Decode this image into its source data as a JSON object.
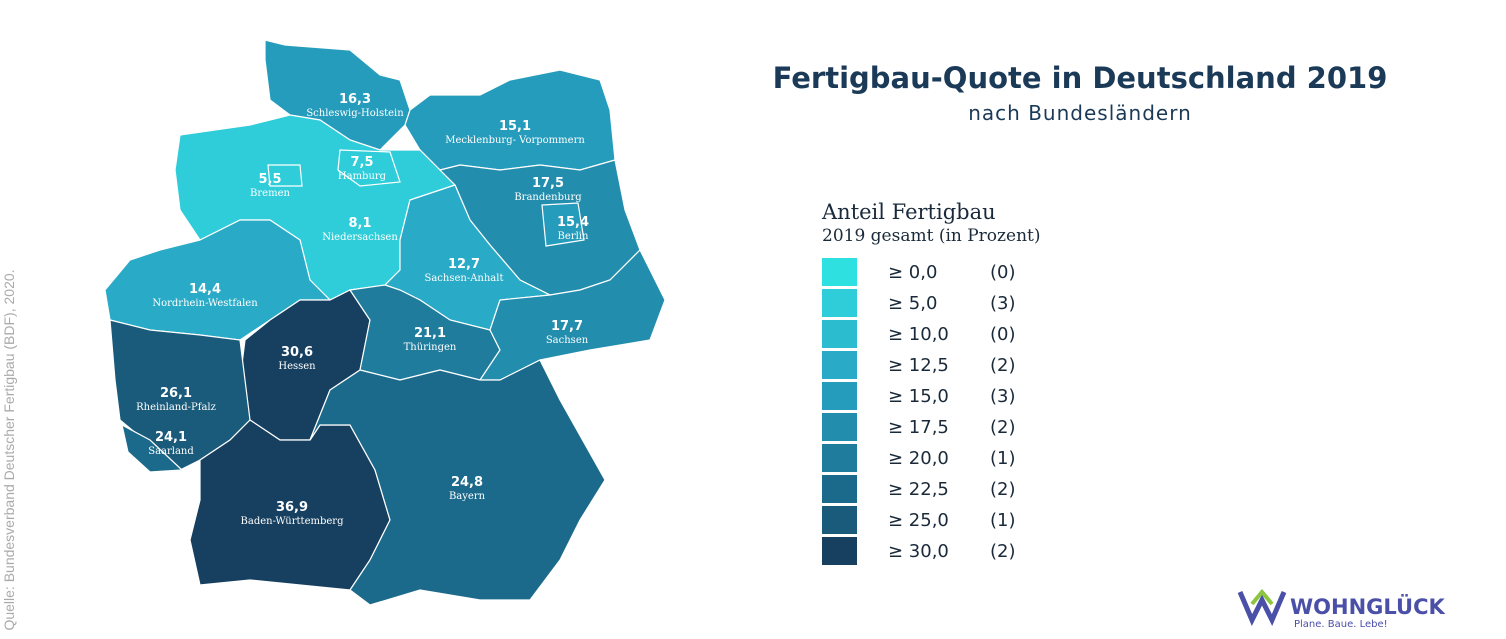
{
  "title": "Fertigbau-Quote in Deutschland 2019",
  "subtitle": "nach Bundesländern",
  "source": "Quelle: Bundesverband Deutscher Fertigbau (BDF), 2020.",
  "legend": {
    "title": "Anteil Fertigbau",
    "subtitle": "2019 gesamt (in Prozent)",
    "items": [
      {
        "threshold": "≥ 0,0",
        "count": "(0)",
        "color": "#2ee0e0"
      },
      {
        "threshold": "≥ 5,0",
        "count": "(3)",
        "color": "#2fcdd9"
      },
      {
        "threshold": "≥ 10,0",
        "count": "(0)",
        "color": "#2bbcd0"
      },
      {
        "threshold": "≥ 12,5",
        "count": "(2)",
        "color": "#29aac6"
      },
      {
        "threshold": "≥ 15,0",
        "count": "(3)",
        "color": "#259cbc"
      },
      {
        "threshold": "≥ 17,5",
        "count": "(2)",
        "color": "#228dad"
      },
      {
        "threshold": "≥ 20,0",
        "count": "(1)",
        "color": "#1f7c9c"
      },
      {
        "threshold": "≥ 22,5",
        "count": "(2)",
        "color": "#1c6a8b"
      },
      {
        "threshold": "≥ 25,0",
        "count": "(1)",
        "color": "#1a5a7a"
      },
      {
        "threshold": "≥ 30,0",
        "count": "(2)",
        "color": "#174060"
      }
    ]
  },
  "regions": [
    {
      "name": "Schleswig-Holstein",
      "value": "16,3",
      "color": "#259cbc"
    },
    {
      "name": "Mecklenburg- Vorpommern",
      "value": "15,1",
      "color": "#259cbc"
    },
    {
      "name": "Niedersachsen",
      "value": "8,1",
      "color": "#2fcdd9"
    },
    {
      "name": "Hamburg",
      "value": "7,5",
      "color": "#2fcdd9"
    },
    {
      "name": "Bremen",
      "value": "5,5",
      "color": "#2fcdd9"
    },
    {
      "name": "Brandenburg",
      "value": "17,5",
      "color": "#228dad"
    },
    {
      "name": "Berlin",
      "value": "15,4",
      "color": "#259cbc"
    },
    {
      "name": "Sachsen-Anhalt",
      "value": "12,7",
      "color": "#29aac6"
    },
    {
      "name": "Nordrhein-Westfalen",
      "value": "14,4",
      "color": "#29aac6"
    },
    {
      "name": "Hessen",
      "value": "30,6",
      "color": "#174060"
    },
    {
      "name": "Thüringen",
      "value": "21,1",
      "color": "#1f7c9c"
    },
    {
      "name": "Sachsen",
      "value": "17,7",
      "color": "#228dad"
    },
    {
      "name": "Rheinland-Pfalz",
      "value": "26,1",
      "color": "#1a5a7a"
    },
    {
      "name": "Saarland",
      "value": "24,1",
      "color": "#1c6a8b"
    },
    {
      "name": "Baden-Württemberg",
      "value": "36,9",
      "color": "#174060"
    },
    {
      "name": "Bayern",
      "value": "24,8",
      "color": "#1c6a8b"
    }
  ],
  "logo": {
    "name": "WOHNGLÜCK",
    "tagline": "Plane. Baue. Lebe!"
  }
}
